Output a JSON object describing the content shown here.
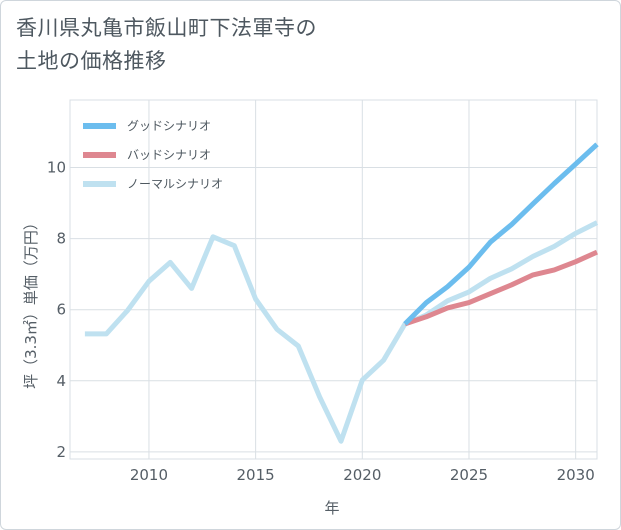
{
  "title_lines": [
    "香川県丸亀市飯山町下法軍寺の",
    "土地の価格推移"
  ],
  "chart_data": {
    "type": "line",
    "title": "香川県丸亀市飯山町下法軍寺の土地の価格推移",
    "xlabel": "年",
    "ylabel": "坪（3.3㎡）単価（万円）",
    "xlim": [
      2006.3,
      2031
    ],
    "ylim": [
      1.8,
      11.9
    ],
    "xticks": [
      2010,
      2015,
      2020,
      2025,
      2030
    ],
    "yticks": [
      2,
      4,
      6,
      8,
      10
    ],
    "grid": true,
    "legend_position": "top-left",
    "series": [
      {
        "name": "グッドシナリオ",
        "color": "#6cbdee",
        "x": [
          2022,
          2023,
          2024,
          2025,
          2026,
          2027,
          2028,
          2029,
          2030,
          2031
        ],
        "y": [
          5.6,
          6.2,
          6.65,
          7.2,
          7.9,
          8.4,
          8.98,
          9.55,
          10.1,
          10.65
        ]
      },
      {
        "name": "バッドシナリオ",
        "color": "#de8790",
        "x": [
          2022,
          2023,
          2024,
          2025,
          2026,
          2027,
          2028,
          2029,
          2030,
          2031
        ],
        "y": [
          5.6,
          5.8,
          6.05,
          6.2,
          6.45,
          6.7,
          6.98,
          7.12,
          7.35,
          7.62
        ]
      },
      {
        "name": "ノーマルシナリオ",
        "color": "#bfe1f0",
        "x": [
          2007,
          2008,
          2009,
          2010,
          2011,
          2012,
          2013,
          2014,
          2015,
          2016,
          2017,
          2018,
          2019,
          2020,
          2021,
          2022,
          2023,
          2024,
          2025,
          2026,
          2027,
          2028,
          2029,
          2030,
          2031
        ],
        "y": [
          5.32,
          5.32,
          5.98,
          6.8,
          7.33,
          6.6,
          8.05,
          7.8,
          6.3,
          5.45,
          4.98,
          3.55,
          2.3,
          4.02,
          4.58,
          5.6,
          5.85,
          6.25,
          6.5,
          6.88,
          7.15,
          7.5,
          7.78,
          8.15,
          8.45
        ]
      }
    ]
  }
}
